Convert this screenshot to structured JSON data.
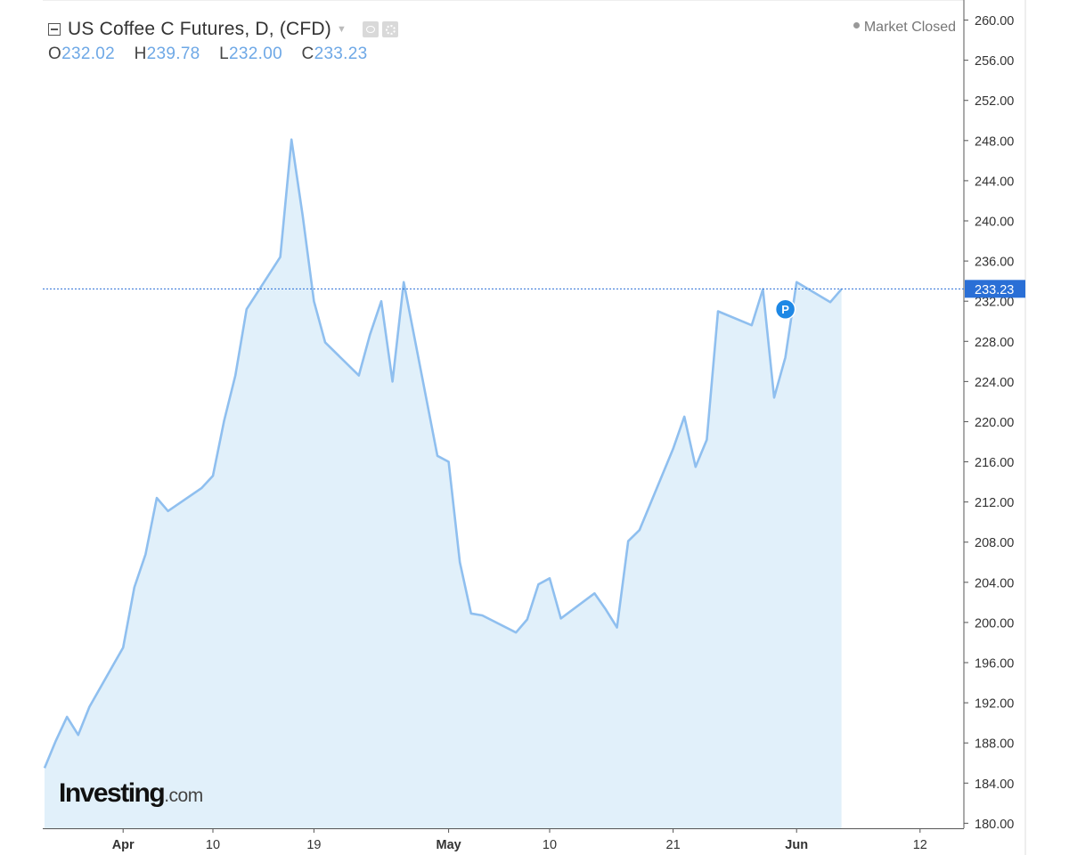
{
  "header": {
    "title": "US Coffee C Futures, D, (CFD)",
    "ohlc": [
      {
        "label": "O",
        "value": "232.02"
      },
      {
        "label": "H",
        "value": "239.78"
      },
      {
        "label": "L",
        "value": "232.00"
      },
      {
        "label": "C",
        "value": "233.23"
      }
    ]
  },
  "status": "Market Closed",
  "logo": {
    "brand": "Investing",
    "tld": ".com"
  },
  "marker": {
    "label": "P"
  },
  "colors": {
    "line": "#8fbfef",
    "fill": "#e1f0fa",
    "accent": "#2a6fd6",
    "marker": "#1e88e5"
  },
  "chart_data": {
    "type": "area",
    "title": "US Coffee C Futures, D, (CFD)",
    "y_ticks": [
      "260.00",
      "256.00",
      "252.00",
      "248.00",
      "244.00",
      "240.00",
      "236.00",
      "232.00",
      "228.00",
      "224.00",
      "220.00",
      "216.00",
      "212.00",
      "208.00",
      "204.00",
      "200.00",
      "196.00",
      "192.00",
      "188.00",
      "184.00",
      "180.00"
    ],
    "ylim": [
      179.5,
      262
    ],
    "x_ticks": [
      {
        "label": "Apr",
        "date": "2018-04-02"
      },
      {
        "label": "10",
        "date": "2018-04-10"
      },
      {
        "label": "19",
        "date": "2018-04-19"
      },
      {
        "label": "May",
        "date": "2018-05-01"
      },
      {
        "label": "10",
        "date": "2018-05-10"
      },
      {
        "label": "21",
        "date": "2018-05-21"
      },
      {
        "label": "Jun",
        "date": "2018-06-01"
      },
      {
        "label": "12",
        "date": "2018-06-12"
      }
    ],
    "last_price": "233.23",
    "series": [
      {
        "values": [
          [
            "2018-03-26",
            185.5
          ],
          [
            "2018-03-27",
            188.2
          ],
          [
            "2018-03-28",
            190.6
          ],
          [
            "2018-03-29",
            188.8
          ],
          [
            "2018-03-30",
            191.6
          ],
          [
            "2018-04-02",
            197.5
          ],
          [
            "2018-04-03",
            203.5
          ],
          [
            "2018-04-04",
            206.8
          ],
          [
            "2018-04-05",
            212.4
          ],
          [
            "2018-04-06",
            211.1
          ],
          [
            "2018-04-09",
            213.4
          ],
          [
            "2018-04-10",
            214.6
          ],
          [
            "2018-04-11",
            220.1
          ],
          [
            "2018-04-12",
            224.6
          ],
          [
            "2018-04-13",
            231.2
          ],
          [
            "2018-04-16",
            236.4
          ],
          [
            "2018-04-17",
            248.1
          ],
          [
            "2018-04-18",
            240.5
          ],
          [
            "2018-04-19",
            232.0
          ],
          [
            "2018-04-20",
            227.9
          ],
          [
            "2018-04-23",
            224.6
          ],
          [
            "2018-04-24",
            228.7
          ],
          [
            "2018-04-25",
            232.0
          ],
          [
            "2018-04-26",
            224.0
          ],
          [
            "2018-04-27",
            233.9
          ],
          [
            "2018-04-30",
            216.6
          ],
          [
            "2018-05-01",
            216.0
          ],
          [
            "2018-05-02",
            206.0
          ],
          [
            "2018-05-03",
            200.9
          ],
          [
            "2018-05-04",
            200.7
          ],
          [
            "2018-05-07",
            199.0
          ],
          [
            "2018-05-08",
            200.3
          ],
          [
            "2018-05-09",
            203.8
          ],
          [
            "2018-05-10",
            204.4
          ],
          [
            "2018-05-11",
            200.4
          ],
          [
            "2018-05-14",
            202.9
          ],
          [
            "2018-05-15",
            201.3
          ],
          [
            "2018-05-16",
            199.5
          ],
          [
            "2018-05-17",
            208.1
          ],
          [
            "2018-05-18",
            209.2
          ],
          [
            "2018-05-21",
            217.3
          ],
          [
            "2018-05-22",
            220.5
          ],
          [
            "2018-05-23",
            215.5
          ],
          [
            "2018-05-24",
            218.2
          ],
          [
            "2018-05-25",
            231.0
          ],
          [
            "2018-05-28",
            229.6
          ],
          [
            "2018-05-29",
            233.2
          ],
          [
            "2018-05-30",
            222.4
          ],
          [
            "2018-05-31",
            226.4
          ],
          [
            "2018-06-01",
            233.9
          ],
          [
            "2018-06-04",
            231.9
          ],
          [
            "2018-06-05",
            233.2
          ]
        ]
      }
    ],
    "markers": [
      {
        "date": "2018-05-31",
        "value": 231.2,
        "label": "P"
      }
    ],
    "grid": false
  }
}
